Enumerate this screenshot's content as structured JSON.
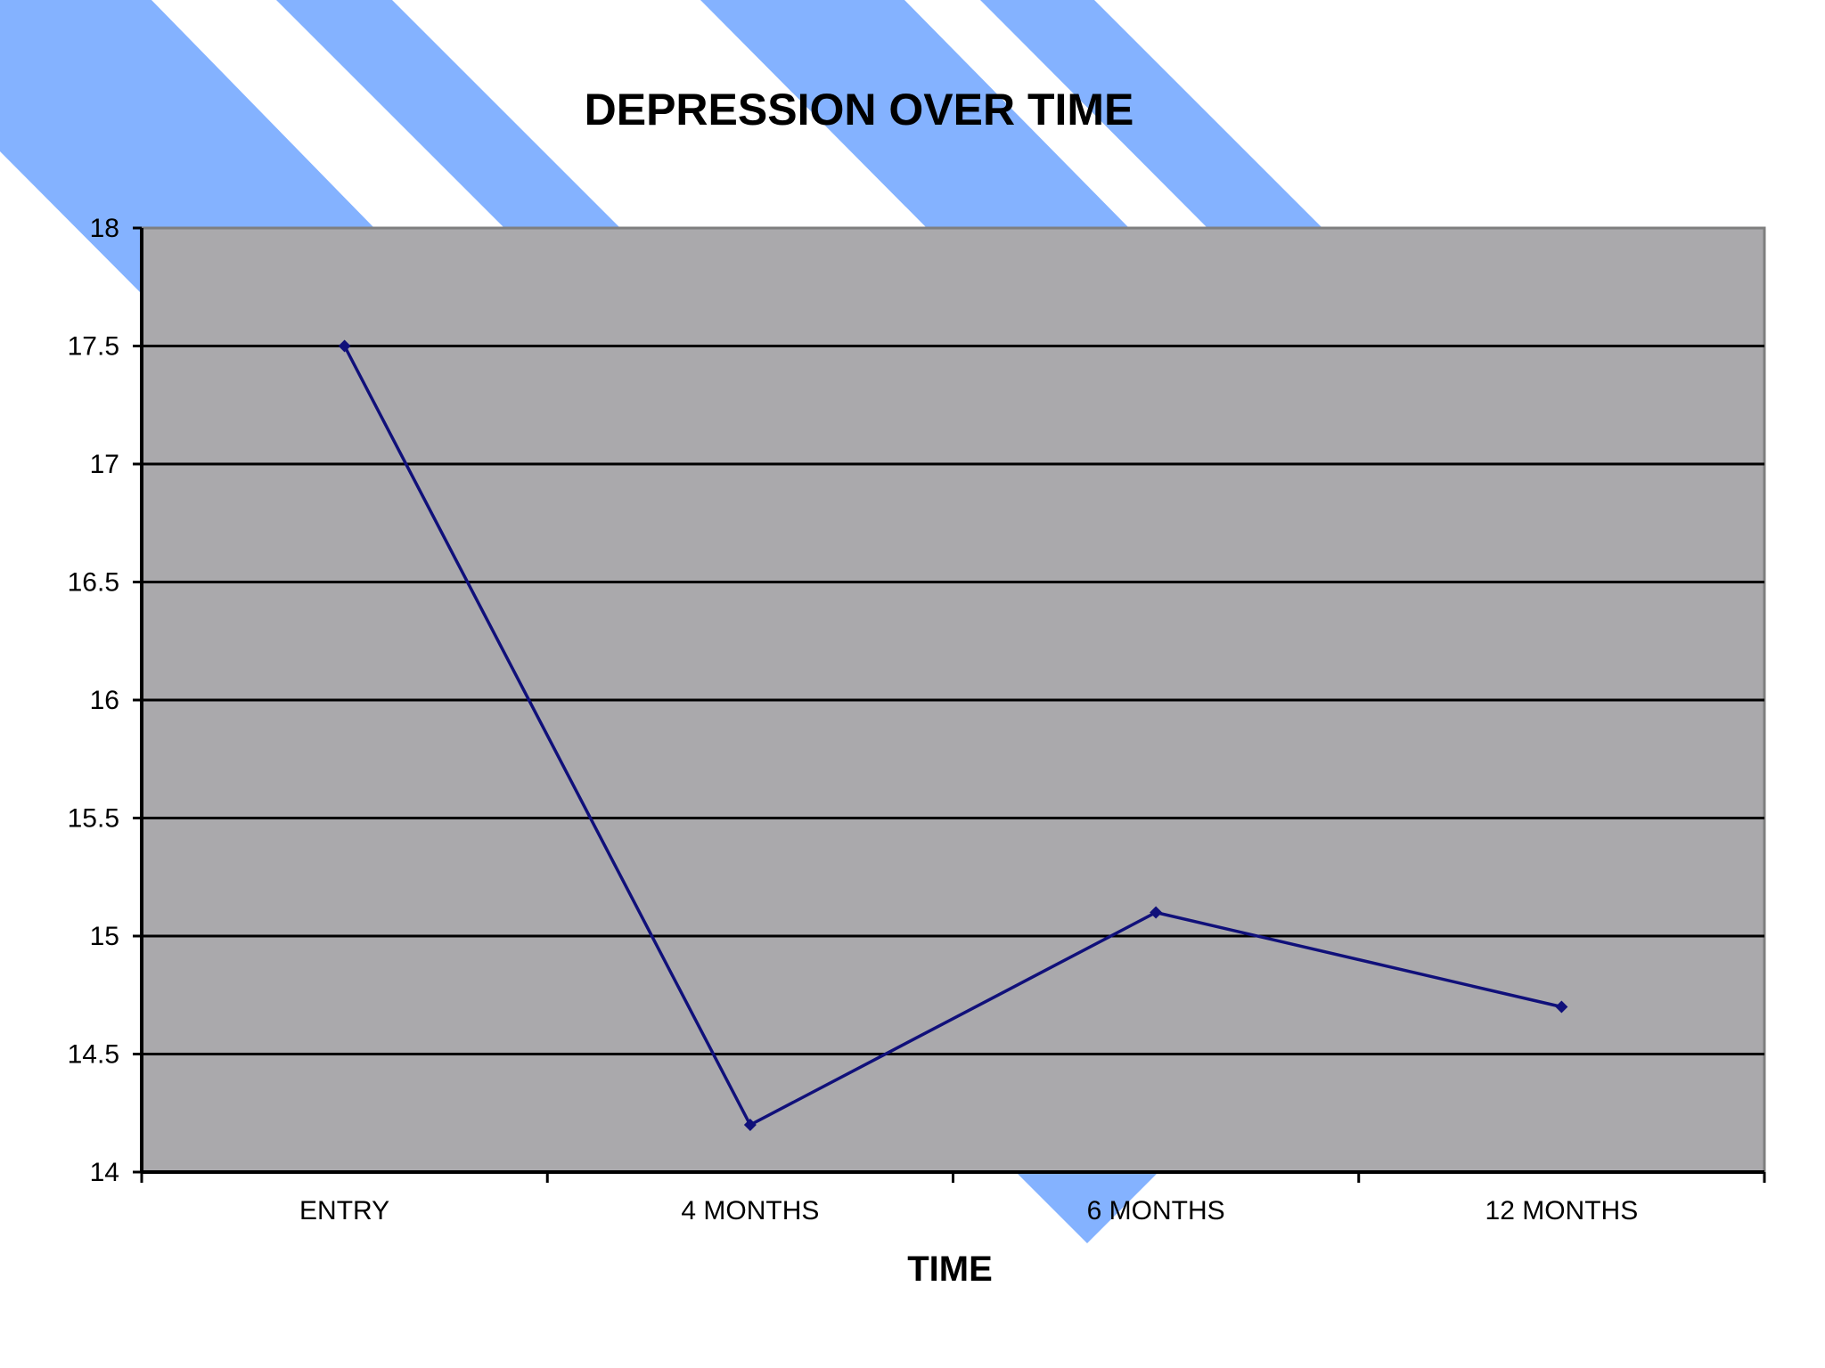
{
  "chart_data": {
    "type": "line",
    "title": "DEPRESSION OVER TIME",
    "xlabel": "TIME",
    "ylabel": "",
    "categories": [
      "ENTRY",
      "4 MONTHS",
      "6 MONTHS",
      "12 MONTHS"
    ],
    "series": [
      {
        "values": [
          17.5,
          14.2,
          15.1,
          14.7
        ]
      }
    ],
    "ylim": [
      14,
      18
    ],
    "ytick_step": 0.5,
    "yticks": [
      "14",
      "14.5",
      "15",
      "15.5",
      "16",
      "16.5",
      "17",
      "17.5",
      "18"
    ],
    "grid": true,
    "legend": "none"
  },
  "colors": {
    "background_stripe": "#84b2ff",
    "plot_area": "#aaa9ac",
    "gridline": "#000000",
    "axis": "#000000",
    "plot_border": "#7f7f7f",
    "series_line": "#10107a"
  }
}
